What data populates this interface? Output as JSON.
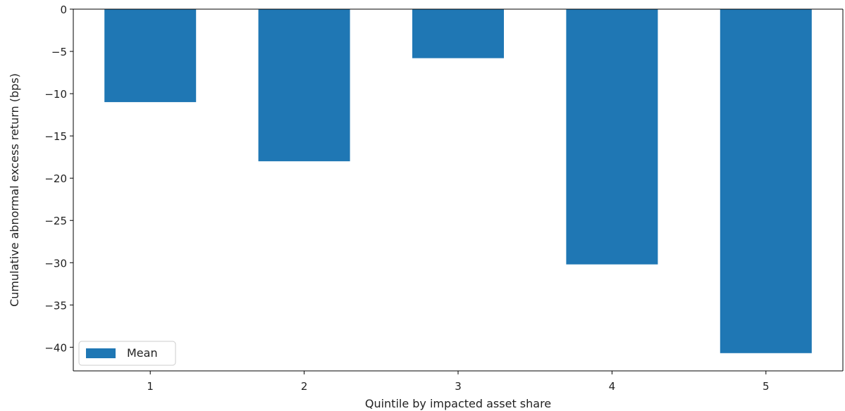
{
  "chart_data": {
    "type": "bar",
    "categories": [
      "1",
      "2",
      "3",
      "4",
      "5"
    ],
    "series": [
      {
        "name": "Mean",
        "values": [
          -11,
          -18,
          -5.8,
          -30.2,
          -40.7
        ]
      }
    ],
    "xlabel": "Quintile by impacted asset share",
    "ylabel": "Cumulative abnormal excess return (bps)",
    "ylim": [
      -42.8,
      0
    ],
    "yticks": [
      0,
      -5,
      -10,
      -15,
      -20,
      -25,
      -30,
      -35,
      -40
    ],
    "grid": false,
    "legend_position": "lower-left",
    "colors": {
      "bar": "#1f77b4"
    }
  }
}
